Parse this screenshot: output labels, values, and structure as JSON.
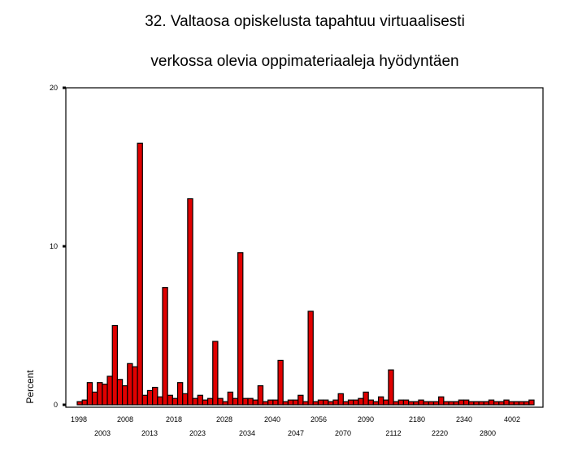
{
  "chart_data": {
    "type": "bar",
    "title_lines": [
      "32. Valtaosa opiskelusta tapahtuu virtuaalisesti",
      "verkossa olevia oppimateriaaleja hyödyntäen"
    ],
    "xlabel": "",
    "ylabel": "Percent",
    "ylim": [
      0,
      20
    ],
    "yticks": [
      0,
      10,
      20
    ],
    "grid": false,
    "legend": "none",
    "bar_color": "#e00000",
    "x_tick_labels_row1": [
      "1998",
      "2008",
      "2018",
      "2028",
      "2040",
      "2056",
      "2090",
      "2180",
      "2340",
      "4002"
    ],
    "x_tick_labels_row2": [
      "2003",
      "2013",
      "2023",
      "2034",
      "2047",
      "2070",
      "2112",
      "2220",
      "2800"
    ],
    "values": [
      0.2,
      0.3,
      1.4,
      0.8,
      1.4,
      1.3,
      1.8,
      5.0,
      1.6,
      1.2,
      2.6,
      2.4,
      16.5,
      0.6,
      0.9,
      1.1,
      0.5,
      7.4,
      0.6,
      0.4,
      1.4,
      0.7,
      13.0,
      0.4,
      0.6,
      0.3,
      0.4,
      4.0,
      0.4,
      0.2,
      0.8,
      0.4,
      9.6,
      0.4,
      0.4,
      0.3,
      1.2,
      0.2,
      0.3,
      0.3,
      2.8,
      0.2,
      0.3,
      0.3,
      0.6,
      0.2,
      5.9,
      0.2,
      0.3,
      0.3,
      0.2,
      0.3,
      0.7,
      0.2,
      0.3,
      0.3,
      0.4,
      0.8,
      0.3,
      0.2,
      0.5,
      0.3,
      2.2,
      0.2,
      0.3,
      0.3,
      0.2,
      0.2,
      0.3,
      0.2,
      0.2,
      0.2,
      0.5,
      0.2,
      0.2,
      0.2,
      0.3,
      0.3,
      0.2,
      0.2,
      0.2,
      0.2,
      0.3,
      0.2,
      0.2,
      0.3,
      0.2,
      0.2,
      0.2,
      0.2,
      0.3
    ]
  }
}
